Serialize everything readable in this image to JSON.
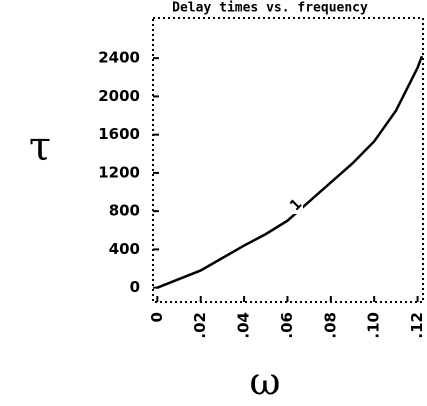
{
  "chart_data": {
    "type": "line",
    "title": "Delay times vs. frequency",
    "x_label": "ω",
    "y_label": "τ",
    "annotation": "1",
    "xlim": [
      -0.002,
      0.1225
    ],
    "ylim": [
      -150,
      2820
    ],
    "xticks": [
      0,
      {
        "value": 0.02,
        "label": ".02"
      },
      {
        "value": 0.04,
        "label": ".04"
      },
      {
        "value": 0.06,
        "label": ".06"
      },
      {
        "value": 0.08,
        "label": ".08"
      },
      {
        "value": 0.1,
        "label": ".10"
      },
      {
        "value": 0.12,
        "label": ".12"
      }
    ],
    "yticks": [
      0,
      400,
      800,
      1200,
      1600,
      2000,
      2400
    ],
    "x": [
      0,
      0.01,
      0.02,
      0.03,
      0.04,
      0.05,
      0.06,
      0.07,
      0.08,
      0.09,
      0.1,
      0.11,
      0.12,
      0.122
    ],
    "series": [
      {
        "name": "1",
        "color": "#000000",
        "values": [
          0,
          90,
          180,
          310,
          440,
          560,
          700,
          900,
          1100,
          1300,
          1530,
          1850,
          2300,
          2420
        ]
      }
    ]
  }
}
